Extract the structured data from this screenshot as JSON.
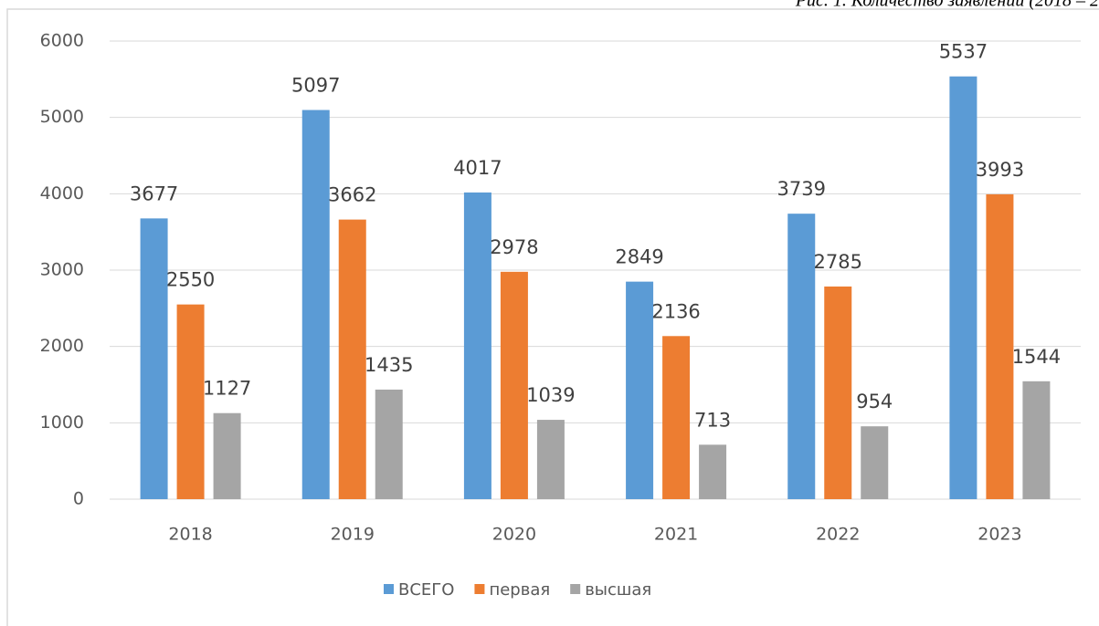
{
  "chart_data": {
    "type": "bar",
    "caption": "Рис. 1. Количество заявлений (2018 – 2",
    "categories": [
      "2018",
      "2019",
      "2020",
      "2021",
      "2022",
      "2023"
    ],
    "series": [
      {
        "name": "ВСЕГО",
        "color": "#5b9bd5",
        "values": [
          3677,
          5097,
          4017,
          2849,
          3739,
          5537
        ]
      },
      {
        "name": "первая",
        "color": "#ed7d31",
        "values": [
          2550,
          3662,
          2978,
          2136,
          2785,
          3993
        ]
      },
      {
        "name": "высшая",
        "color": "#a5a5a5",
        "values": [
          1127,
          1435,
          1039,
          713,
          954,
          1544
        ]
      }
    ],
    "ylim": [
      0,
      6000
    ],
    "yticks": [
      0,
      1000,
      2000,
      3000,
      4000,
      5000,
      6000
    ],
    "grid": true,
    "legend": "bottom"
  }
}
